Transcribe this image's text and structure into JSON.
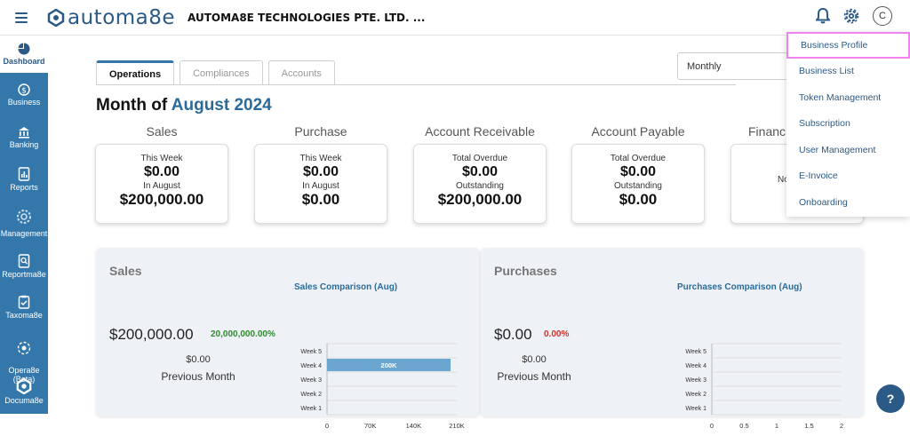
{
  "header": {
    "logo_text": "automa8e",
    "company": "AUTOMA8E TECHNOLOGIES PTE. LTD. ...",
    "avatar_initial": "C"
  },
  "sidebar": {
    "items": [
      {
        "label": "Dashboard",
        "icon": "pie-chart-icon"
      },
      {
        "label": "Business",
        "icon": "dollar-coin-icon"
      },
      {
        "label": "Banking",
        "icon": "bank-icon"
      },
      {
        "label": "Reports",
        "icon": "report-chart-icon"
      },
      {
        "label": "Management",
        "icon": "gear-icon"
      },
      {
        "label": "Reportma8e",
        "icon": "report-search-icon"
      },
      {
        "label": "Taxoma8e",
        "icon": "clipboard-check-icon"
      },
      {
        "label": "Opera8e\n(Beta)",
        "icon": "operations-icon"
      },
      {
        "label": "Documa8e",
        "icon": "document-logo-icon"
      }
    ]
  },
  "tabs": [
    "Operations",
    "Compliances",
    "Accounts"
  ],
  "period_select": "Monthly",
  "month_title": {
    "prefix": "Month of ",
    "highlight": "August 2024"
  },
  "kpis": [
    {
      "title": "Sales",
      "label1": "This Week",
      "value1": "$0.00",
      "label2": "In August",
      "value2": "$200,000.00"
    },
    {
      "title": "Purchase",
      "label1": "This Week",
      "value1": "$0.00",
      "label2": "In August",
      "value2": "$0.00"
    },
    {
      "title": "Account Receivable",
      "label1": "Total Overdue",
      "value1": "$0.00",
      "label2": "Outstanding",
      "value2": "$200,000.00"
    },
    {
      "title": "Account Payable",
      "label1": "Total Overdue",
      "value1": "$0.00",
      "label2": "Outstanding",
      "value2": "$0.00"
    },
    {
      "title": "Financ",
      "label1": "",
      "value1": "",
      "label2": "No",
      "value2": ""
    }
  ],
  "sales_panel": {
    "title": "Sales",
    "amount": "$200,000.00",
    "pct": "20,000,000.00%",
    "pct_color": "#2e8b2e",
    "prev_amount": "$0.00",
    "prev_label": "Previous Month"
  },
  "purchases_panel": {
    "title": "Purchases",
    "amount": "$0.00",
    "pct": "0.00%",
    "pct_color": "#d03030",
    "prev_amount": "$0.00",
    "prev_label": "Previous Month"
  },
  "chart_data": [
    {
      "type": "bar",
      "orientation": "horizontal",
      "title": "Sales Comparison (Aug)",
      "categories": [
        "Week 5",
        "Week 4",
        "Week 3",
        "Week 2",
        "Week 1"
      ],
      "values": [
        0,
        200000,
        0,
        0,
        0
      ],
      "data_labels": [
        "",
        "200K",
        "",
        "",
        ""
      ],
      "xlim": [
        0,
        210000
      ],
      "xticks": [
        "0",
        "70K",
        "140K",
        "210K"
      ],
      "bar_color": "#6aa6cf"
    },
    {
      "type": "bar",
      "orientation": "horizontal",
      "title": "Purchases Comparison (Aug)",
      "categories": [
        "Week 5",
        "Week 4",
        "Week 3",
        "Week 2",
        "Week 1"
      ],
      "values": [
        0,
        0,
        0,
        0,
        0
      ],
      "xlim": [
        0,
        2
      ],
      "xticks": [
        "0",
        "0.5",
        "1",
        "1.5",
        "2"
      ],
      "bar_color": "#6aa6cf"
    }
  ],
  "settings_menu": {
    "items": [
      "Business Profile",
      "Business List",
      "Token Management",
      "Subscription",
      "User Management",
      "E-Invoice",
      "Onboarding"
    ]
  },
  "help_label": "?"
}
